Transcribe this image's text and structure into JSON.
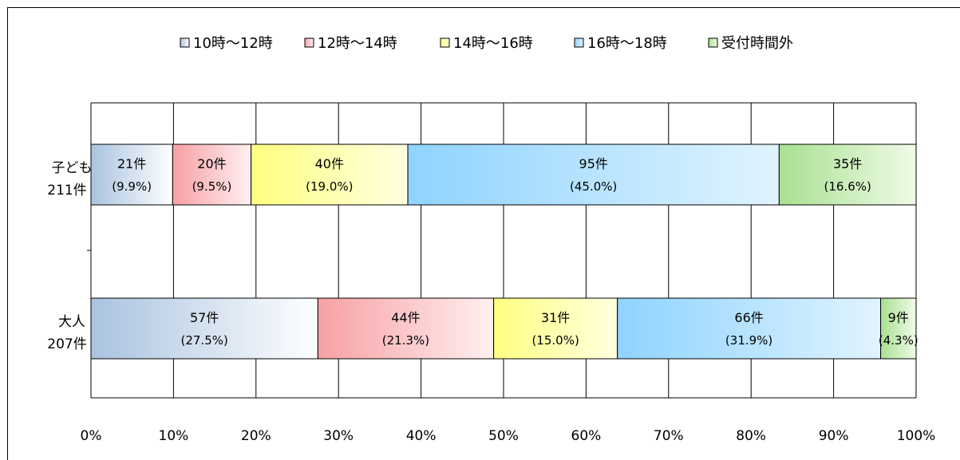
{
  "chart_data": {
    "type": "bar",
    "stacked": "percent",
    "orientation": "horizontal",
    "legend": {
      "position": "top"
    },
    "series": [
      {
        "name": "10時～12時",
        "color": "#b8d0e8",
        "gradient": [
          "#a9c3df",
          "#ffffff"
        ]
      },
      {
        "name": "12時～14時",
        "color": "#f6a8ab",
        "gradient": [
          "#f7a0a4",
          "#fff0f0"
        ]
      },
      {
        "name": "14時～16時",
        "color": "#ffff99",
        "gradient": [
          "#ffff80",
          "#ffffe0"
        ]
      },
      {
        "name": "16時～18時",
        "color": "#99d8ff",
        "gradient": [
          "#8fd3ff",
          "#e0f4ff"
        ]
      },
      {
        "name": "受付時間外",
        "color": "#b8e8a0",
        "gradient": [
          "#a8e090",
          "#f0fbe8"
        ]
      }
    ],
    "categories": [
      {
        "label_line1": "子ども",
        "label_line2": "211件",
        "segments": [
          {
            "count": 21,
            "count_label": "21件",
            "percent": 9.9,
            "percent_label": "(9.9%)"
          },
          {
            "count": 20,
            "count_label": "20件",
            "percent": 9.5,
            "percent_label": "(9.5%)"
          },
          {
            "count": 40,
            "count_label": "40件",
            "percent": 19.0,
            "percent_label": "(19.0%)"
          },
          {
            "count": 95,
            "count_label": "95件",
            "percent": 45.0,
            "percent_label": "(45.0%)"
          },
          {
            "count": 35,
            "count_label": "35件",
            "percent": 16.6,
            "percent_label": "(16.6%)"
          }
        ]
      },
      {
        "label_line1": "大人",
        "label_line2": "207件",
        "segments": [
          {
            "count": 57,
            "count_label": "57件",
            "percent": 27.5,
            "percent_label": "(27.5%)"
          },
          {
            "count": 44,
            "count_label": "44件",
            "percent": 21.3,
            "percent_label": "(21.3%)"
          },
          {
            "count": 31,
            "count_label": "31件",
            "percent": 15.0,
            "percent_label": "(15.0%)"
          },
          {
            "count": 66,
            "count_label": "66件",
            "percent": 31.9,
            "percent_label": "(31.9%)"
          },
          {
            "count": 9,
            "count_label": "9件",
            "percent": 4.3,
            "percent_label": "(4.3%)"
          }
        ]
      }
    ],
    "xaxis": {
      "ticks": [
        0,
        10,
        20,
        30,
        40,
        50,
        60,
        70,
        80,
        90,
        100
      ],
      "tick_labels": [
        "0%",
        "10%",
        "20%",
        "30%",
        "40%",
        "50%",
        "60%",
        "70%",
        "80%",
        "90%",
        "100%"
      ],
      "range": [
        0,
        100
      ]
    },
    "grid": true
  }
}
